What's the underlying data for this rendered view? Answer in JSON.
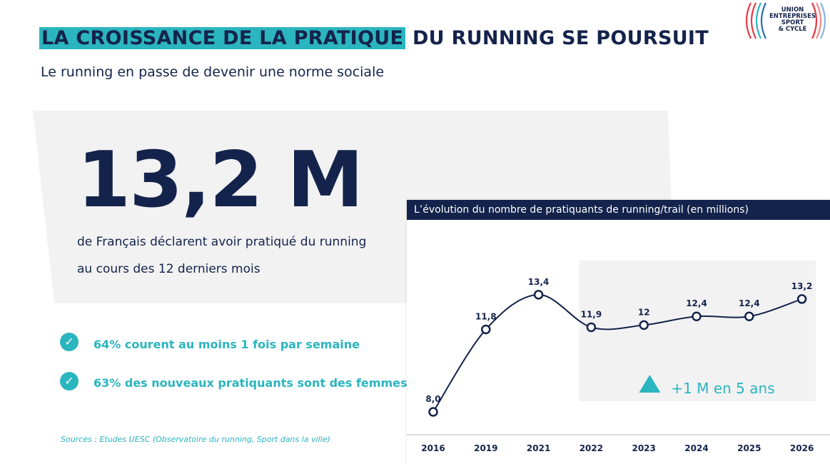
{
  "header": {
    "title_highlight": "LA CROISSANCE DE LA PRATIQUE",
    "title_rest": " DU RUNNING SE POURSUIT",
    "subtitle": "Le running en passe de devenir une norme sociale"
  },
  "logo": {
    "text": "UNION ENTREPRISES SPORT & CYCLE"
  },
  "stat": {
    "value": "13,2 M",
    "description": "de Français déclarent avoir pratiqué du running au cours des 12 derniers mois"
  },
  "bullets": [
    {
      "icon": "check-circle-icon",
      "text": "64% courent au moins 1 fois par semaine"
    },
    {
      "icon": "check-circle-icon",
      "text": "63% des nouveaux pratiquants sont des femmes"
    }
  ],
  "source": "Sources : Etudes UESC (Observatoire du running, Sport dans la ville)",
  "colors": {
    "navy": "#14234b",
    "teal": "#2bb5bf",
    "panel_gray": "#f2f2f3"
  },
  "chart_data": {
    "type": "line",
    "title": "L’évolution du nombre de pratiquants de running/trail (en millions)",
    "categories": [
      "2016",
      "2019",
      "2021",
      "2022",
      "2023",
      "2024",
      "2025",
      "2026"
    ],
    "values": [
      8.0,
      11.8,
      13.4,
      11.9,
      12,
      12.4,
      12.4,
      13.2
    ],
    "data_labels": [
      "8,0",
      "11,8",
      "13,4",
      "11,9",
      "12",
      "12,4",
      "12,4",
      "13,2"
    ],
    "annotation": "+1 M en 5 ans",
    "highlight_range": [
      "2022",
      "2026"
    ],
    "grid": false
  }
}
